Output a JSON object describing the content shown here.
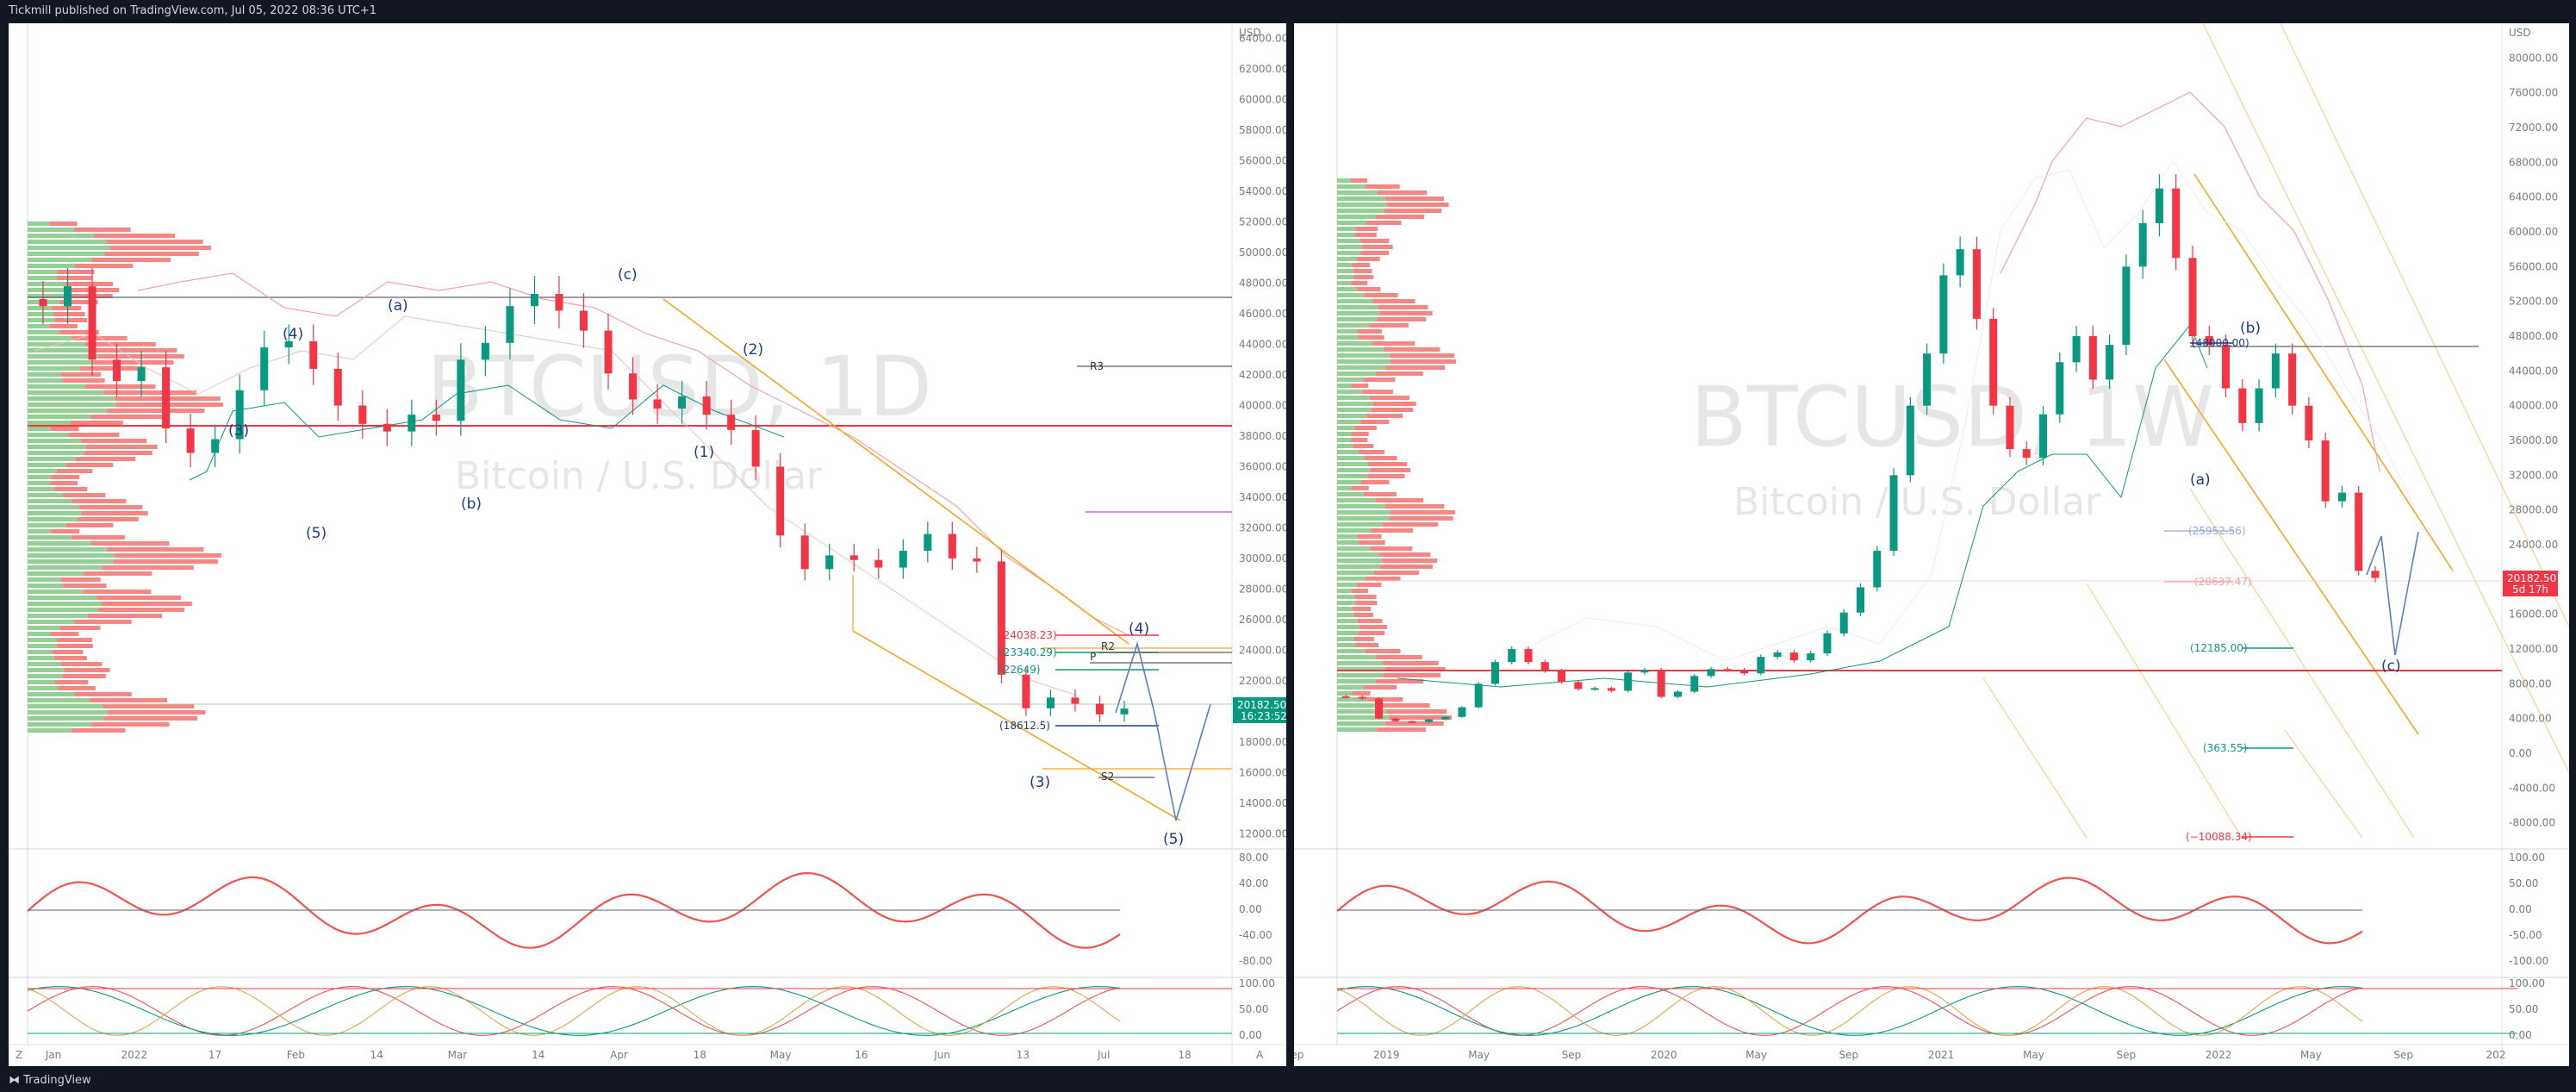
{
  "header": {
    "published": "Tickmill published on TradingView.com, Jul 05, 2022 08:36 UTC+1"
  },
  "footer": {
    "brand": "TradingView"
  },
  "colors": {
    "bull": "#089981",
    "bear": "#f23645",
    "accent_orange": "#f5a623",
    "wave_blue": "#1e3a8a",
    "price_green": "#089981",
    "price_red": "#f23645"
  },
  "chart_data": [
    {
      "type": "candlestick",
      "symbol": "BTCUSD",
      "timeframe": "1D",
      "watermark": {
        "symbol": "BTCUSD, 1D",
        "name": "Bitcoin / U.S. Dollar"
      },
      "currency": "USD",
      "y_ticks": [
        "64000.00",
        "62000.00",
        "60000.00",
        "58000.00",
        "56000.00",
        "54000.00",
        "52000.00",
        "50000.00",
        "48000.00",
        "46000.00",
        "44000.00",
        "42000.00",
        "40000.00",
        "38000.00",
        "36000.00",
        "34000.00",
        "32000.00",
        "30000.00",
        "28000.00",
        "26000.00",
        "24000.00",
        "22000.00",
        "20000.00",
        "18000.00",
        "16000.00",
        "14000.00",
        "12000.00"
      ],
      "ylim": [
        11000,
        65000
      ],
      "x_ticks": [
        "Jan",
        "2022",
        "17",
        "Feb",
        "14",
        "Mar",
        "14",
        "Apr",
        "18",
        "May",
        "16",
        "Jun",
        "13",
        "Jul",
        "18"
      ],
      "close_approx": [
        46500,
        47800,
        43000,
        41600,
        42500,
        38500,
        36900,
        37800,
        41000,
        43800,
        44200,
        42400,
        40000,
        38800,
        38300,
        39400,
        39000,
        43000,
        44100,
        46500,
        47300,
        46200,
        44900,
        42100,
        40400,
        39800,
        40600,
        39400,
        38400,
        36000,
        31500,
        29300,
        30200,
        29900,
        29400,
        30500,
        31600,
        30000,
        29800,
        22400,
        20200,
        20900,
        20500,
        19800,
        20182
      ],
      "last_price": {
        "price": "20182.50",
        "countdown": "16:23:52"
      },
      "waves": [
        "(4)",
        "(3)",
        "(5)",
        "(a)",
        "(b)",
        "(c)",
        "(1)",
        "(2)",
        "(3)",
        "(4)",
        "(5)"
      ],
      "levels": [
        {
          "label": "(24038.23)",
          "price": 24038.23
        },
        {
          "label": "(23340.29)",
          "price": 23340.29
        },
        {
          "label": "(22649)",
          "price": 22649
        },
        {
          "label": "(18612.5)",
          "price": 18612.5
        }
      ],
      "pivots": [
        "R3",
        "R2",
        "P",
        "S2"
      ],
      "oscillator1": {
        "ticks": [
          "80.00",
          "40.00",
          "0.00",
          "-40.00",
          "-80.00"
        ]
      },
      "oscillator2": {
        "ticks": [
          "100.00",
          "50.00",
          "0.00"
        ]
      }
    },
    {
      "type": "candlestick",
      "symbol": "BTCUSD",
      "timeframe": "1W",
      "watermark": {
        "symbol": "BTCUSD, 1W",
        "name": "Bitcoin / U.S. Dollar"
      },
      "currency": "USD",
      "y_ticks": [
        "80000.00",
        "76000.00",
        "72000.00",
        "68000.00",
        "64000.00",
        "60000.00",
        "56000.00",
        "52000.00",
        "48000.00",
        "44000.00",
        "40000.00",
        "36000.00",
        "32000.00",
        "28000.00",
        "24000.00",
        "20000.00",
        "16000.00",
        "12000.00",
        "8000.00",
        "4000.00",
        "0.00",
        "-4000.00",
        "-8000.00"
      ],
      "ylim": [
        -11000,
        84000
      ],
      "x_ticks": [
        "Sep",
        "2019",
        "May",
        "Sep",
        "2020",
        "May",
        "Sep",
        "2021",
        "May",
        "Sep",
        "2022",
        "May",
        "Sep",
        "202"
      ],
      "close_approx": [
        6500,
        6300,
        4000,
        3700,
        3600,
        3900,
        4200,
        5300,
        8000,
        10500,
        12000,
        10500,
        9500,
        8200,
        7400,
        7500,
        7200,
        9300,
        9600,
        6500,
        7100,
        8900,
        9700,
        9600,
        9200,
        11100,
        11600,
        10700,
        11500,
        13800,
        16200,
        19100,
        23300,
        32000,
        40000,
        46000,
        55000,
        58000,
        50000,
        40000,
        35000,
        34000,
        39000,
        45000,
        48000,
        43000,
        47000,
        56000,
        61000,
        65000,
        57000,
        48000,
        47000,
        42000,
        38000,
        42000,
        46000,
        40000,
        36000,
        29000,
        30000,
        21000,
        20182
      ],
      "last_price": {
        "price": "20182.50",
        "countdown": "5d 17h"
      },
      "waves": [
        "(a)",
        "(b)",
        "(c)"
      ],
      "levels": [
        {
          "label": "(48000.00)",
          "price": 48000
        },
        {
          "label": "(25952.56)",
          "price": 25952.56
        },
        {
          "label": "(20637.47)",
          "price": 20637.47
        },
        {
          "label": "(12185.00)",
          "price": 12185
        },
        {
          "label": "(363.55)",
          "price": 363.55
        },
        {
          "label": "(−10088.34)",
          "price": -10088.34
        }
      ],
      "oscillator1": {
        "ticks": [
          "100.00",
          "50.00",
          "0.00",
          "-50.00",
          "-100.00"
        ]
      },
      "oscillator2": {
        "ticks": [
          "100.00",
          "50.00",
          "0.00"
        ]
      }
    }
  ],
  "axis_buttons": {
    "left": "Z",
    "right": "A"
  }
}
